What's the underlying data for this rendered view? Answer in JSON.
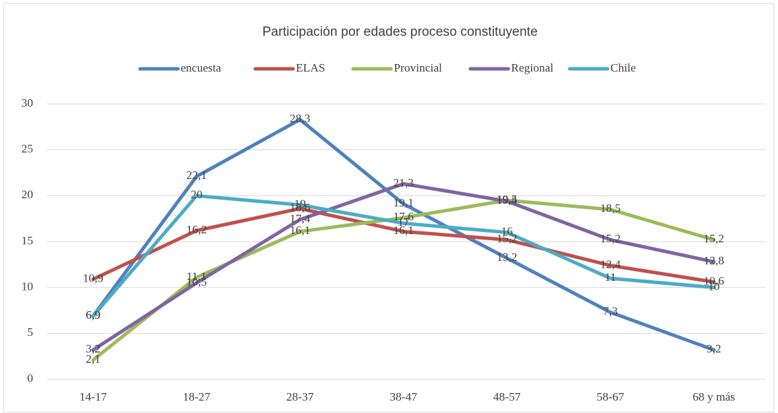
{
  "chart_data": {
    "type": "line",
    "title": "Participación por edades proceso constituyente",
    "categories": [
      "14-17",
      "18-27",
      "28-37",
      "38-47",
      "48-57",
      "58-67",
      "68 y más"
    ],
    "series": [
      {
        "name": "encuesta",
        "color": "#4f81bd",
        "values": [
          6.9,
          22.1,
          28.3,
          19.1,
          13.2,
          7.3,
          3.2
        ],
        "value_labels": [
          "6,9",
          "22,1",
          "28,3",
          "19,1",
          "13,2",
          "7,3",
          "3,2"
        ]
      },
      {
        "name": "ELAS",
        "color": "#c0504d",
        "values": [
          10.9,
          16.2,
          18.6,
          16.1,
          15.2,
          12.4,
          10.6
        ],
        "value_labels": [
          "10,9",
          "16,2",
          "18,6",
          "16,1",
          "15,2",
          "12,4",
          "10,6"
        ]
      },
      {
        "name": "Provincial",
        "color": "#9bbb59",
        "values": [
          2.1,
          11.1,
          16.1,
          17.6,
          19.5,
          18.5,
          15.2
        ],
        "value_labels": [
          "2,1",
          "11,1",
          "16,1",
          "17,6",
          "19,5",
          "18,5",
          "15,2"
        ]
      },
      {
        "name": "Regional",
        "color": "#8064a2",
        "values": [
          3.2,
          10.5,
          17.4,
          21.3,
          19.4,
          15.2,
          12.8
        ],
        "value_labels": [
          "3,2",
          "10,5",
          "17,4",
          "21,3",
          "19,4",
          "15,2",
          "12,8"
        ]
      },
      {
        "name": "Chile",
        "color": "#4bacc6",
        "values": [
          6.9,
          20,
          19,
          17,
          16,
          11,
          10
        ],
        "value_labels": [
          "6,9",
          "20",
          "19",
          "17",
          "16",
          "11",
          "10"
        ]
      }
    ],
    "ylim": [
      0,
      30
    ],
    "yticks": [
      0,
      5,
      10,
      15,
      20,
      25,
      30
    ],
    "grid": true,
    "legend": "top"
  }
}
